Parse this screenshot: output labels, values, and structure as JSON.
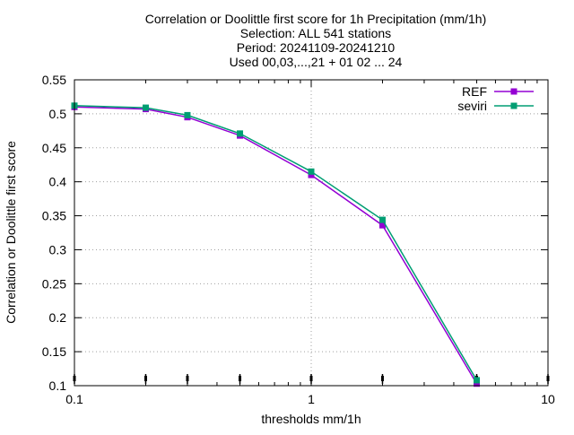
{
  "chart_data": {
    "type": "line",
    "title_lines": [
      "Correlation or Doolittle first score  for 1h Precipitation (mm/1h)",
      "Selection: ALL    541 stations",
      "Period: 20241109-20241210",
      "Used 00,03,...,21 + 01 02 ... 24"
    ],
    "xlabel": "thresholds mm/1h",
    "ylabel": "Correlation or Doolittle first score",
    "x_scale": "log",
    "xlim": [
      0.1,
      10
    ],
    "ylim": [
      0.1,
      0.55
    ],
    "x_ticks": [
      {
        "value": 0.1,
        "label": "0.1"
      },
      {
        "value": 1,
        "label": "1"
      },
      {
        "value": 10,
        "label": "10"
      }
    ],
    "y_ticks": [
      {
        "value": 0.1,
        "label": "0.1"
      },
      {
        "value": 0.15,
        "label": "0.15"
      },
      {
        "value": 0.2,
        "label": "0.2"
      },
      {
        "value": 0.25,
        "label": "0.25"
      },
      {
        "value": 0.3,
        "label": "0.3"
      },
      {
        "value": 0.35,
        "label": "0.35"
      },
      {
        "value": 0.4,
        "label": "0.4"
      },
      {
        "value": 0.45,
        "label": "0.45"
      },
      {
        "value": 0.5,
        "label": "0.5"
      },
      {
        "value": 0.55,
        "label": "0.55"
      }
    ],
    "grid": true,
    "legend_position": "top-right",
    "marker_x": [
      0.1,
      0.2,
      0.3,
      0.5,
      1,
      2,
      5,
      10
    ],
    "x": [
      0.1,
      0.2,
      0.3,
      0.5,
      1,
      2,
      5
    ],
    "series": [
      {
        "name": "REF",
        "color": "#9400d3",
        "values": [
          0.51,
          0.507,
          0.495,
          0.468,
          0.41,
          0.336,
          0.103
        ]
      },
      {
        "name": "seviri",
        "color": "#009e73",
        "values": [
          0.512,
          0.509,
          0.498,
          0.471,
          0.415,
          0.344,
          0.108
        ]
      }
    ]
  }
}
